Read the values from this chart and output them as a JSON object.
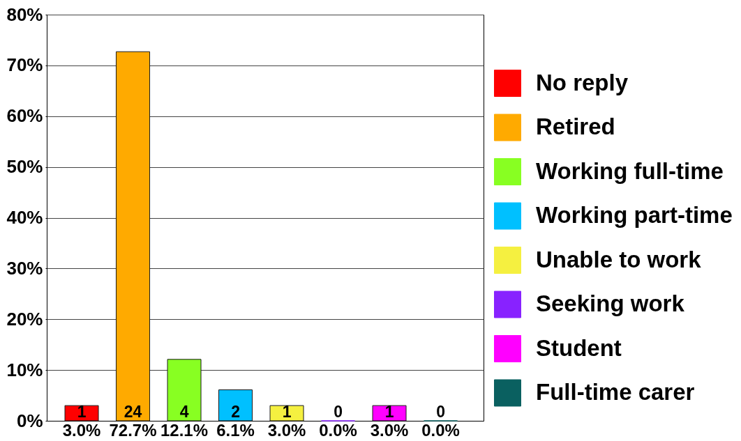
{
  "chart_data": {
    "type": "bar",
    "stacked": true,
    "categories": [
      null,
      null,
      null,
      null,
      null,
      null,
      null,
      null
    ],
    "series": [
      {
        "name": "No reply",
        "color": "#ff0000",
        "values": [
          3.0,
          null,
          null,
          null,
          null,
          null,
          null,
          null
        ],
        "value_labels": [
          "3.0%",
          null,
          null,
          null,
          null,
          null,
          null,
          null
        ]
      },
      {
        "name": "Retired",
        "color": "#ffaa00",
        "values": [
          null,
          72.7,
          null,
          null,
          null,
          null,
          null,
          null
        ],
        "value_labels": [
          null,
          "72.7%",
          null,
          null,
          null,
          null,
          null,
          null
        ]
      },
      {
        "name": "Working full-time",
        "color": "#88ff22",
        "values": [
          null,
          null,
          12.1,
          null,
          null,
          null,
          null,
          null
        ],
        "value_labels": [
          null,
          null,
          "12.1%",
          null,
          null,
          null,
          null,
          null
        ]
      },
      {
        "name": "Working part-time",
        "color": "#00c0ff",
        "values": [
          null,
          null,
          null,
          6.1,
          null,
          null,
          null,
          null
        ],
        "value_labels": [
          null,
          null,
          null,
          "6.1%",
          null,
          null,
          null,
          null
        ]
      },
      {
        "name": "Unable to work",
        "color": "#f5f040",
        "values": [
          null,
          null,
          null,
          null,
          3.0,
          null,
          null,
          null
        ],
        "value_labels": [
          null,
          null,
          null,
          null,
          "3.0%",
          null,
          null,
          null
        ]
      },
      {
        "name": "Seeking work",
        "color": "#8822ff",
        "values": [
          null,
          null,
          null,
          null,
          null,
          0.0,
          null,
          null
        ],
        "value_labels": [
          null,
          null,
          null,
          null,
          null,
          "0.0%",
          null,
          null
        ]
      },
      {
        "name": "Student",
        "color": "#ff00ff",
        "values": [
          null,
          null,
          null,
          null,
          null,
          null,
          3.0,
          null
        ],
        "value_labels": [
          null,
          null,
          null,
          null,
          null,
          null,
          "3.0%",
          null
        ]
      },
      {
        "name": "Full-time carer",
        "color": "#0a6060",
        "values": [
          null,
          null,
          null,
          null,
          null,
          null,
          null,
          0.0
        ],
        "value_labels": [
          null,
          null,
          null,
          null,
          null,
          null,
          null,
          "0.0%"
        ]
      }
    ],
    "annotations": [
      "1",
      "24",
      "4",
      "2",
      "1",
      "0",
      "1",
      "0"
    ],
    "ylim": [
      0,
      80
    ],
    "yticks": [
      {
        "value": 0,
        "label": "0%"
      },
      {
        "value": 10,
        "label": "10%"
      },
      {
        "value": 20,
        "label": "20%"
      },
      {
        "value": 30,
        "label": "30%"
      },
      {
        "value": 40,
        "label": "40%"
      },
      {
        "value": 50,
        "label": "50%"
      },
      {
        "value": 60,
        "label": "60%"
      },
      {
        "value": 70,
        "label": "70%"
      },
      {
        "value": 80,
        "label": "80%"
      }
    ],
    "grid": "y",
    "legend": "right",
    "tick_labels": "y"
  }
}
